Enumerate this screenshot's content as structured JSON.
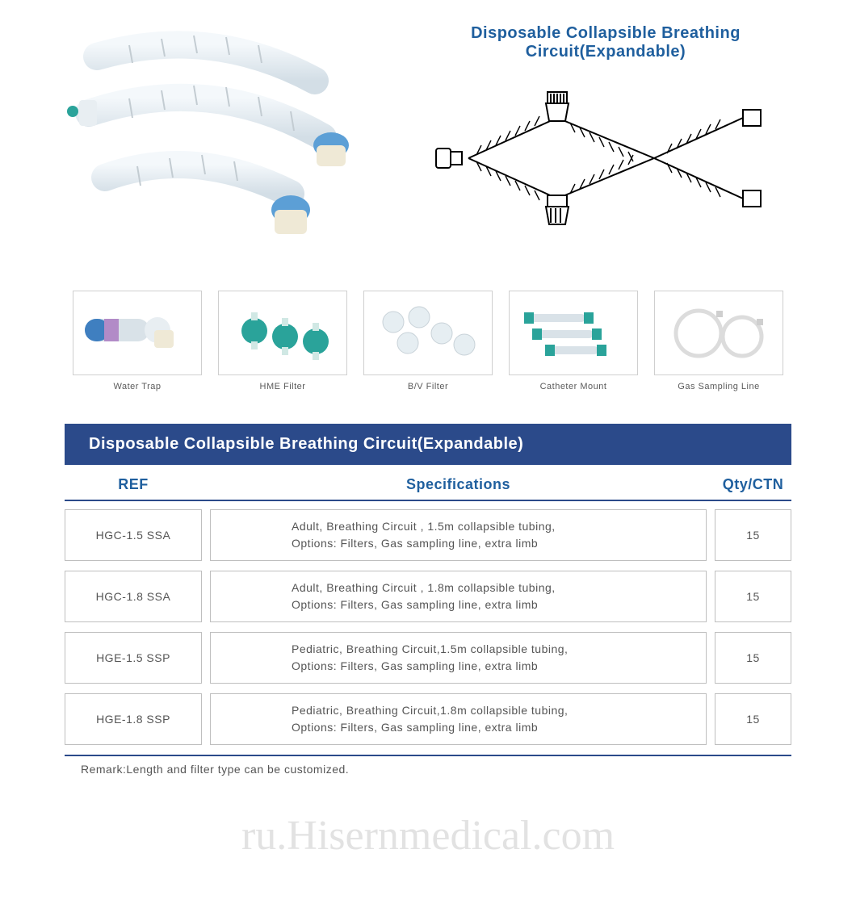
{
  "title": "Disposable Collapsible Breathing Circuit(Expandable)",
  "title_color": "#1f5f9e",
  "thumbnails": [
    {
      "label": "Water Trap",
      "accent": "#3f7fc0",
      "accent2": "#b28bc7"
    },
    {
      "label": "HME Filter",
      "accent": "#2aa39a"
    },
    {
      "label": "B/V Filter",
      "accent": "#d8e4e8"
    },
    {
      "label": "Catheter Mount",
      "accent": "#2aa39a"
    },
    {
      "label": "Gas Sampling Line",
      "accent": "#e6e6e6"
    }
  ],
  "spec_table": {
    "header": "Disposable Collapsible Breathing Circuit(Expandable)",
    "header_bg": "#2b4a8a",
    "columns": [
      "REF",
      "Specifications",
      "Qty/CTN"
    ],
    "column_color": "#1f5f9e",
    "divider_color": "#2b4a8a",
    "cell_border": "#bfbfbf",
    "text_color": "#555555",
    "rows": [
      {
        "ref": "HGC-1.5 SSA",
        "spec": "Adult, Breathing Circuit , 1.5m collapsible tubing,\nOptions: Filters, Gas sampling line, extra limb",
        "qty": "15"
      },
      {
        "ref": "HGC-1.8 SSA",
        "spec": "Adult, Breathing Circuit , 1.8m collapsible tubing,\nOptions: Filters, Gas sampling line, extra limb",
        "qty": "15"
      },
      {
        "ref": "HGE-1.5 SSP",
        "spec": "Pediatric, Breathing Circuit,1.5m collapsible tubing,\nOptions: Filters, Gas sampling line, extra limb",
        "qty": "15"
      },
      {
        "ref": "HGE-1.8 SSP",
        "spec": "Pediatric, Breathing Circuit,1.8m collapsible tubing,\nOptions: Filters, Gas sampling line, extra limb",
        "qty": "15"
      }
    ],
    "remark": "Remark:Length and filter type can be customized."
  },
  "watermark": "ru.Hisernmedical.com",
  "colors": {
    "background": "#ffffff",
    "watermark": "rgba(150,150,150,0.28)"
  }
}
